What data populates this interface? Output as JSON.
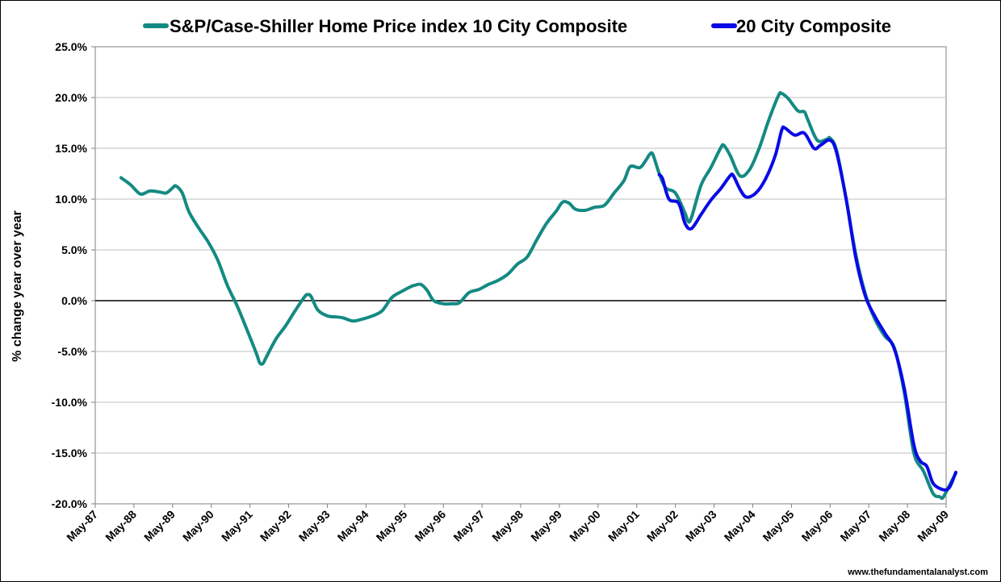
{
  "chart_data": {
    "type": "line",
    "title": "",
    "xlabel": "",
    "ylabel": "% change year over year",
    "ylim": [
      -20,
      25
    ],
    "xlim": [
      "May-87",
      "May-09"
    ],
    "grid": true,
    "legend_position": "top",
    "y_ticks": [
      -20,
      -15,
      -10,
      -5,
      0,
      5,
      10,
      15,
      20,
      25
    ],
    "y_tick_labels": [
      "-20.0%",
      "-15.0%",
      "-10.0%",
      "-5.0%",
      "0.0%",
      "5.0%",
      "10.0%",
      "15.0%",
      "20.0%",
      "25.0%"
    ],
    "x_tick_labels": [
      "May-87",
      "May-88",
      "May-89",
      "May-90",
      "May-91",
      "May-92",
      "May-93",
      "May-94",
      "May-95",
      "May-96",
      "May-97",
      "May-98",
      "May-99",
      "May-00",
      "May-01",
      "May-02",
      "May-03",
      "May-04",
      "May-05",
      "May-06",
      "May-07",
      "May-08",
      "May-09"
    ],
    "series": [
      {
        "name": "S&P/Case-Shiller Home Price index 10 City Composite",
        "color": "#138a82",
        "points": [
          [
            "Jan-88",
            12.1
          ],
          [
            "Apr-88",
            11.4
          ],
          [
            "Jul-88",
            10.5
          ],
          [
            "Oct-88",
            10.8
          ],
          [
            "Jan-89",
            10.7
          ],
          [
            "Mar-89",
            10.6
          ],
          [
            "May-89",
            11.1
          ],
          [
            "Jun-89",
            11.3
          ],
          [
            "Aug-89",
            10.6
          ],
          [
            "Oct-89",
            8.8
          ],
          [
            "Jan-90",
            7.2
          ],
          [
            "Apr-90",
            5.8
          ],
          [
            "Jul-90",
            4.0
          ],
          [
            "Oct-90",
            1.5
          ],
          [
            "Jan-91",
            -0.5
          ],
          [
            "Apr-91",
            -2.8
          ],
          [
            "Jul-91",
            -5.2
          ],
          [
            "Aug-91",
            -6.1
          ],
          [
            "Sep-91",
            -6.2
          ],
          [
            "Oct-91",
            -5.6
          ],
          [
            "Jan-92",
            -3.8
          ],
          [
            "Apr-92",
            -2.5
          ],
          [
            "Jul-92",
            -1.0
          ],
          [
            "Oct-92",
            0.4
          ],
          [
            "Nov-92",
            0.6
          ],
          [
            "Dec-92",
            0.4
          ],
          [
            "Feb-93",
            -0.9
          ],
          [
            "May-93",
            -1.5
          ],
          [
            "Aug-93",
            -1.6
          ],
          [
            "Oct-93",
            -1.7
          ],
          [
            "Jan-94",
            -2.0
          ],
          [
            "Apr-94",
            -1.8
          ],
          [
            "Jul-94",
            -1.5
          ],
          [
            "Oct-94",
            -1.0
          ],
          [
            "Jan-95",
            0.3
          ],
          [
            "Apr-95",
            0.9
          ],
          [
            "Jul-95",
            1.4
          ],
          [
            "Aug-95",
            1.5
          ],
          [
            "Oct-95",
            1.6
          ],
          [
            "Dec-95",
            1.0
          ],
          [
            "Feb-96",
            0.0
          ],
          [
            "May-96",
            -0.3
          ],
          [
            "Aug-96",
            -0.3
          ],
          [
            "Oct-96",
            -0.2
          ],
          [
            "Jan-97",
            0.8
          ],
          [
            "Apr-97",
            1.1
          ],
          [
            "Jul-97",
            1.6
          ],
          [
            "Oct-97",
            2.0
          ],
          [
            "Jan-98",
            2.6
          ],
          [
            "Apr-98",
            3.6
          ],
          [
            "Jul-98",
            4.3
          ],
          [
            "Oct-98",
            6.0
          ],
          [
            "Jan-99",
            7.6
          ],
          [
            "Apr-99",
            8.8
          ],
          [
            "Jun-99",
            9.7
          ],
          [
            "Aug-99",
            9.6
          ],
          [
            "Oct-99",
            9.0
          ],
          [
            "Jan-00",
            8.9
          ],
          [
            "Apr-00",
            9.2
          ],
          [
            "Jul-00",
            9.4
          ],
          [
            "Oct-00",
            10.6
          ],
          [
            "Jan-01",
            11.8
          ],
          [
            "Mar-01",
            13.2
          ],
          [
            "Jun-01",
            13.1
          ],
          [
            "Aug-01",
            13.9
          ],
          [
            "Sep-01",
            14.4
          ],
          [
            "Oct-01",
            14.4
          ],
          [
            "Dec-01",
            12.5
          ],
          [
            "Feb-02",
            11.1
          ],
          [
            "May-02",
            10.6
          ],
          [
            "Aug-02",
            8.6
          ],
          [
            "Sep-02",
            7.8
          ],
          [
            "Oct-02",
            8.2
          ],
          [
            "Jan-03",
            11.4
          ],
          [
            "Apr-03",
            13.1
          ],
          [
            "Jul-03",
            15.0
          ],
          [
            "Aug-03",
            15.3
          ],
          [
            "Oct-03",
            14.3
          ],
          [
            "Jan-04",
            12.3
          ],
          [
            "Apr-04",
            12.9
          ],
          [
            "Jul-04",
            15.0
          ],
          [
            "Oct-04",
            17.8
          ],
          [
            "Jan-05",
            20.2
          ],
          [
            "Feb-05",
            20.4
          ],
          [
            "Apr-05",
            19.9
          ],
          [
            "Jul-05",
            18.7
          ],
          [
            "Sep-05",
            18.6
          ],
          [
            "Oct-05",
            17.9
          ],
          [
            "Jan-06",
            15.8
          ],
          [
            "Apr-06",
            15.9
          ],
          [
            "May-06",
            16.0
          ],
          [
            "Jul-06",
            14.8
          ],
          [
            "Oct-06",
            10.0
          ],
          [
            "Jan-07",
            4.5
          ],
          [
            "Apr-07",
            0.6
          ],
          [
            "Jul-07",
            -1.9
          ],
          [
            "Oct-07",
            -3.5
          ],
          [
            "Jan-08",
            -4.7
          ],
          [
            "Apr-08",
            -9.0
          ],
          [
            "Jul-08",
            -15.0
          ],
          [
            "Oct-08",
            -16.8
          ],
          [
            "Jan-09",
            -19.0
          ],
          [
            "Mar-09",
            -19.3
          ],
          [
            "Apr-09",
            -19.4
          ],
          [
            "Jun-09",
            -18.2
          ],
          [
            "Aug-09",
            -17.0
          ]
        ]
      },
      {
        "name": "20 City Composite",
        "color": "#0a0ae6",
        "points": [
          [
            "Dec-01",
            12.4
          ],
          [
            "Jan-02",
            12.0
          ],
          [
            "Mar-02",
            10.0
          ],
          [
            "Jun-02",
            9.6
          ],
          [
            "Aug-02",
            7.6
          ],
          [
            "Oct-02",
            7.1
          ],
          [
            "Jan-03",
            8.5
          ],
          [
            "Apr-03",
            9.9
          ],
          [
            "Jul-03",
            11.0
          ],
          [
            "Oct-03",
            12.3
          ],
          [
            "Nov-03",
            12.3
          ],
          [
            "Jan-04",
            11.0
          ],
          [
            "Mar-04",
            10.2
          ],
          [
            "Jun-04",
            10.6
          ],
          [
            "Sep-04",
            12.0
          ],
          [
            "Dec-04",
            14.3
          ],
          [
            "Feb-05",
            16.8
          ],
          [
            "Mar-05",
            17.0
          ],
          [
            "Jun-05",
            16.3
          ],
          [
            "Sep-05",
            16.5
          ],
          [
            "Dec-05",
            15.0
          ],
          [
            "Feb-06",
            15.3
          ],
          [
            "May-06",
            15.8
          ],
          [
            "Jul-06",
            14.6
          ],
          [
            "Oct-06",
            10.0
          ],
          [
            "Jan-07",
            4.2
          ],
          [
            "Apr-07",
            0.4
          ],
          [
            "Jul-07",
            -1.6
          ],
          [
            "Oct-07",
            -3.2
          ],
          [
            "Jan-08",
            -4.8
          ],
          [
            "Apr-08",
            -8.6
          ],
          [
            "Jul-08",
            -14.2
          ],
          [
            "Sep-08",
            -15.8
          ],
          [
            "Nov-08",
            -16.3
          ],
          [
            "Jan-09",
            -18.0
          ],
          [
            "Apr-09",
            -18.6
          ],
          [
            "Jun-09",
            -18.4
          ],
          [
            "Aug-09",
            -16.9
          ]
        ]
      }
    ]
  },
  "credit": "www.thefundamentalanalyst.com"
}
